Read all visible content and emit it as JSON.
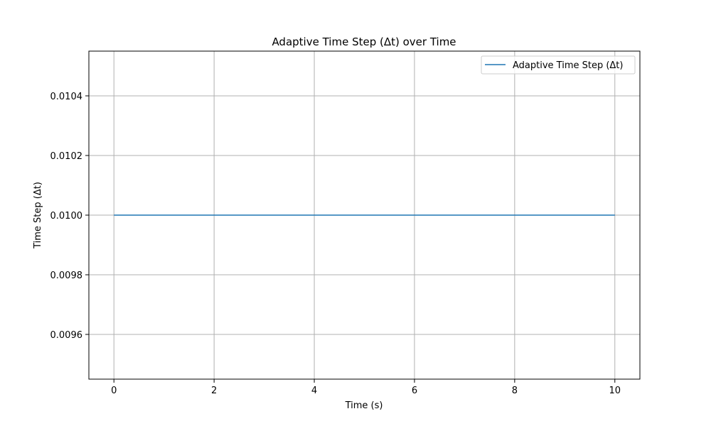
{
  "chart_data": {
    "type": "line",
    "title": "Adaptive Time Step (Δt) over Time",
    "xlabel": "Time (s)",
    "ylabel": "Time Step (Δt)",
    "xlim": [
      -0.5,
      10.5
    ],
    "ylim": [
      0.00945,
      0.01055
    ],
    "x_ticks": [
      0,
      2,
      4,
      6,
      8,
      10
    ],
    "x_tick_labels": [
      "0",
      "2",
      "4",
      "6",
      "8",
      "10"
    ],
    "y_ticks": [
      0.0096,
      0.0098,
      0.01,
      0.0102,
      0.0104
    ],
    "y_tick_labels": [
      "0.0096",
      "0.0098",
      "0.0100",
      "0.0102",
      "0.0104"
    ],
    "grid": true,
    "legend_position": "top-right",
    "series": [
      {
        "name": "Adaptive Time Step (Δt)",
        "color": "#1f77b4",
        "x": [
          0,
          10
        ],
        "y": [
          0.01,
          0.01
        ]
      }
    ]
  }
}
